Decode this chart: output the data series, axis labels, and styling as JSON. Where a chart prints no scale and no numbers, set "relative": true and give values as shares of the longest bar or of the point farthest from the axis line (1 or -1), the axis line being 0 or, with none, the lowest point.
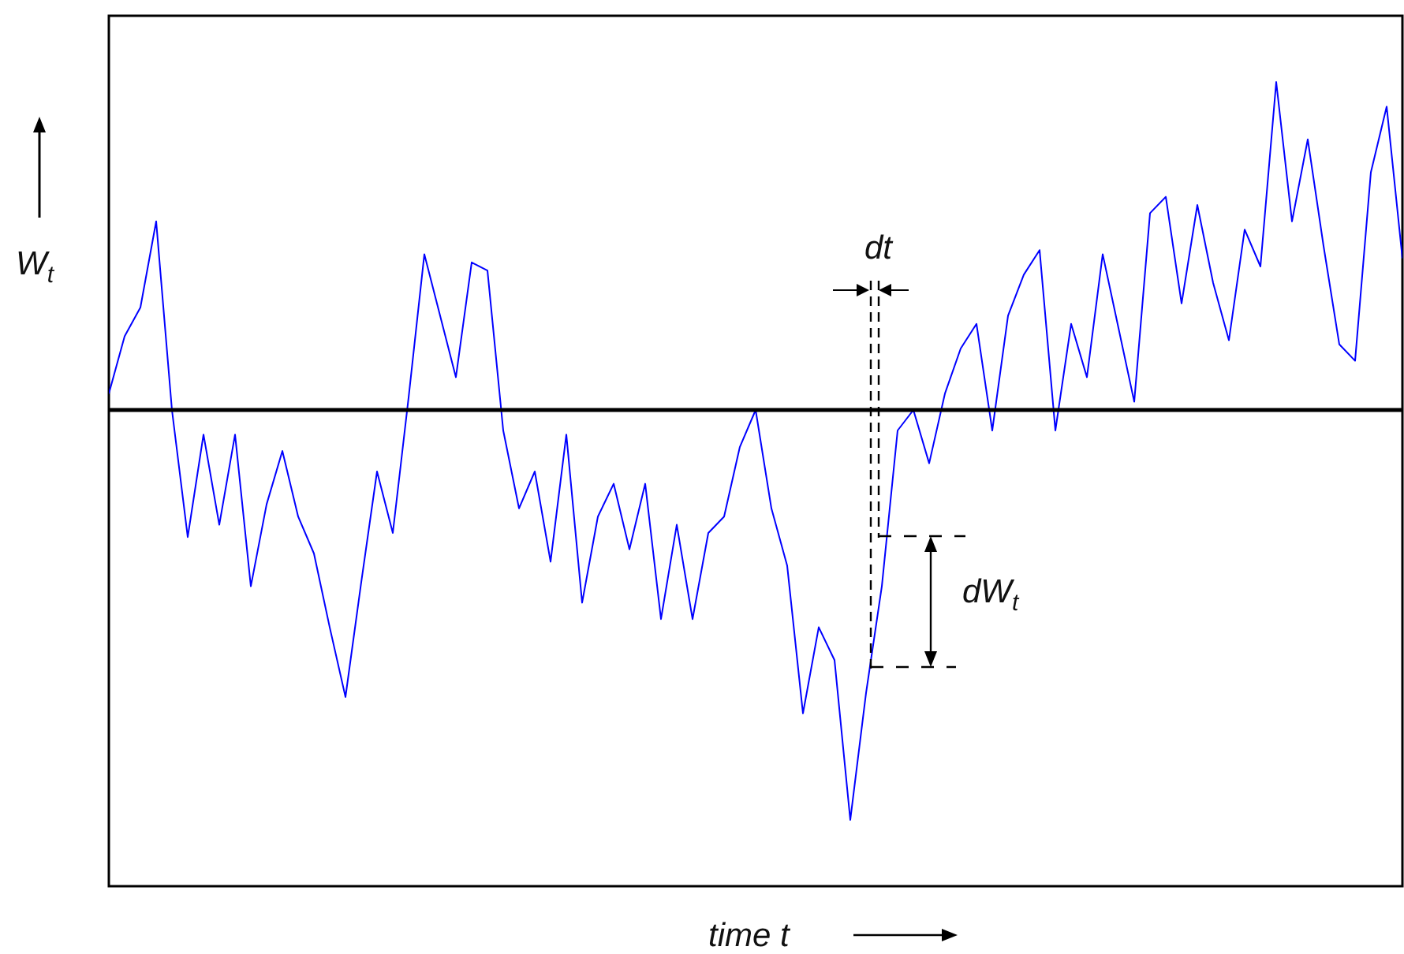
{
  "chart_data": {
    "type": "line",
    "relative": true,
    "xlabel": "time t",
    "ylabel": "W$_{t}$",
    "annotations": [
      "dt",
      "dW$_{t}$"
    ],
    "categories": [
      null,
      null,
      null,
      null,
      null,
      null,
      null,
      null,
      null,
      null,
      null,
      null,
      null,
      null,
      null,
      null,
      null,
      null,
      null,
      null,
      null,
      null,
      null,
      null,
      null,
      null,
      null,
      null,
      null,
      null,
      null,
      null,
      null,
      null,
      null,
      null,
      null,
      null,
      null,
      null,
      null,
      null,
      null,
      null,
      null,
      null,
      null,
      null,
      null,
      null,
      null,
      null,
      null,
      null,
      null,
      null,
      null,
      null,
      null,
      null,
      null,
      null,
      null,
      null,
      null,
      null,
      null,
      null,
      null,
      null,
      null,
      null,
      null,
      null,
      null,
      null,
      null,
      null,
      null,
      null,
      null,
      null,
      null
    ],
    "series": [
      {
        "color": "#0000ff",
        "values": [
          0.04,
          0.18,
          0.25,
          0.46,
          0.0,
          -0.31,
          -0.06,
          -0.28,
          -0.06,
          -0.43,
          -0.23,
          -0.1,
          -0.26,
          -0.35,
          -0.53,
          -0.7,
          -0.42,
          -0.15,
          -0.3,
          0.03,
          0.38,
          0.23,
          0.08,
          0.36,
          0.34,
          -0.05,
          -0.24,
          -0.15,
          -0.37,
          -0.06,
          -0.47,
          -0.26,
          -0.18,
          -0.34,
          -0.18,
          -0.51,
          -0.28,
          -0.51,
          -0.3,
          -0.26,
          -0.09,
          0.0,
          -0.24,
          -0.38,
          -0.74,
          -0.53,
          -0.61,
          -1.0,
          -0.69,
          -0.43,
          -0.05,
          0.0,
          -0.13,
          0.04,
          0.15,
          0.21,
          -0.05,
          0.23,
          0.33,
          0.39,
          -0.05,
          0.21,
          0.08,
          0.38,
          0.2,
          0.02,
          0.48,
          0.52,
          0.26,
          0.5,
          0.31,
          0.17,
          0.44,
          0.35,
          0.8,
          0.46,
          0.66,
          0.4,
          0.16,
          0.12,
          0.58,
          0.74,
          0.37
        ]
      }
    ],
    "ref_lines": [
      {
        "axis": "y",
        "value": 0,
        "color": "#000000"
      }
    ]
  }
}
